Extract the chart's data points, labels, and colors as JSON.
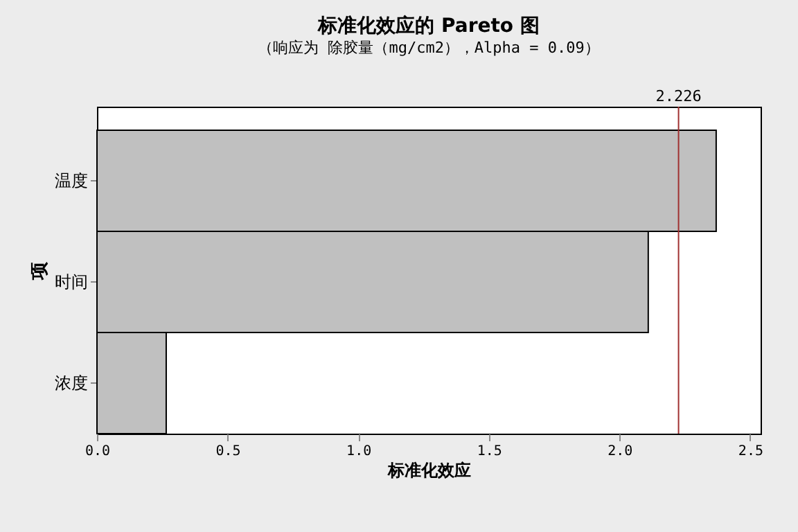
{
  "chart_data": {
    "type": "bar",
    "orientation": "horizontal",
    "title": "标准化效应的 Pareto 图",
    "subtitle": "（响应为 除胶量（mg/cm2），Alpha =  0.09）",
    "xlabel": "标准化效应",
    "ylabel": "项",
    "categories": [
      "温度",
      "时间",
      "浓度"
    ],
    "series": [
      {
        "color": "#c0c0c0",
        "values": [
          2.37,
          2.11,
          0.265
        ]
      }
    ],
    "xlim": [
      0,
      2.54
    ],
    "xticks": [
      {
        "value": 0,
        "label": "0.0"
      },
      {
        "value": 0.5,
        "label": "0.5"
      },
      {
        "value": 1,
        "label": "1.0"
      },
      {
        "value": 1.5,
        "label": "1.5"
      },
      {
        "value": 2,
        "label": "2.0"
      },
      {
        "value": 2.5,
        "label": "2.5"
      }
    ],
    "ref_lines": [
      {
        "axis": "x",
        "value": 2.226,
        "label": "2.226",
        "color": "#a03030"
      }
    ],
    "grid": false
  }
}
